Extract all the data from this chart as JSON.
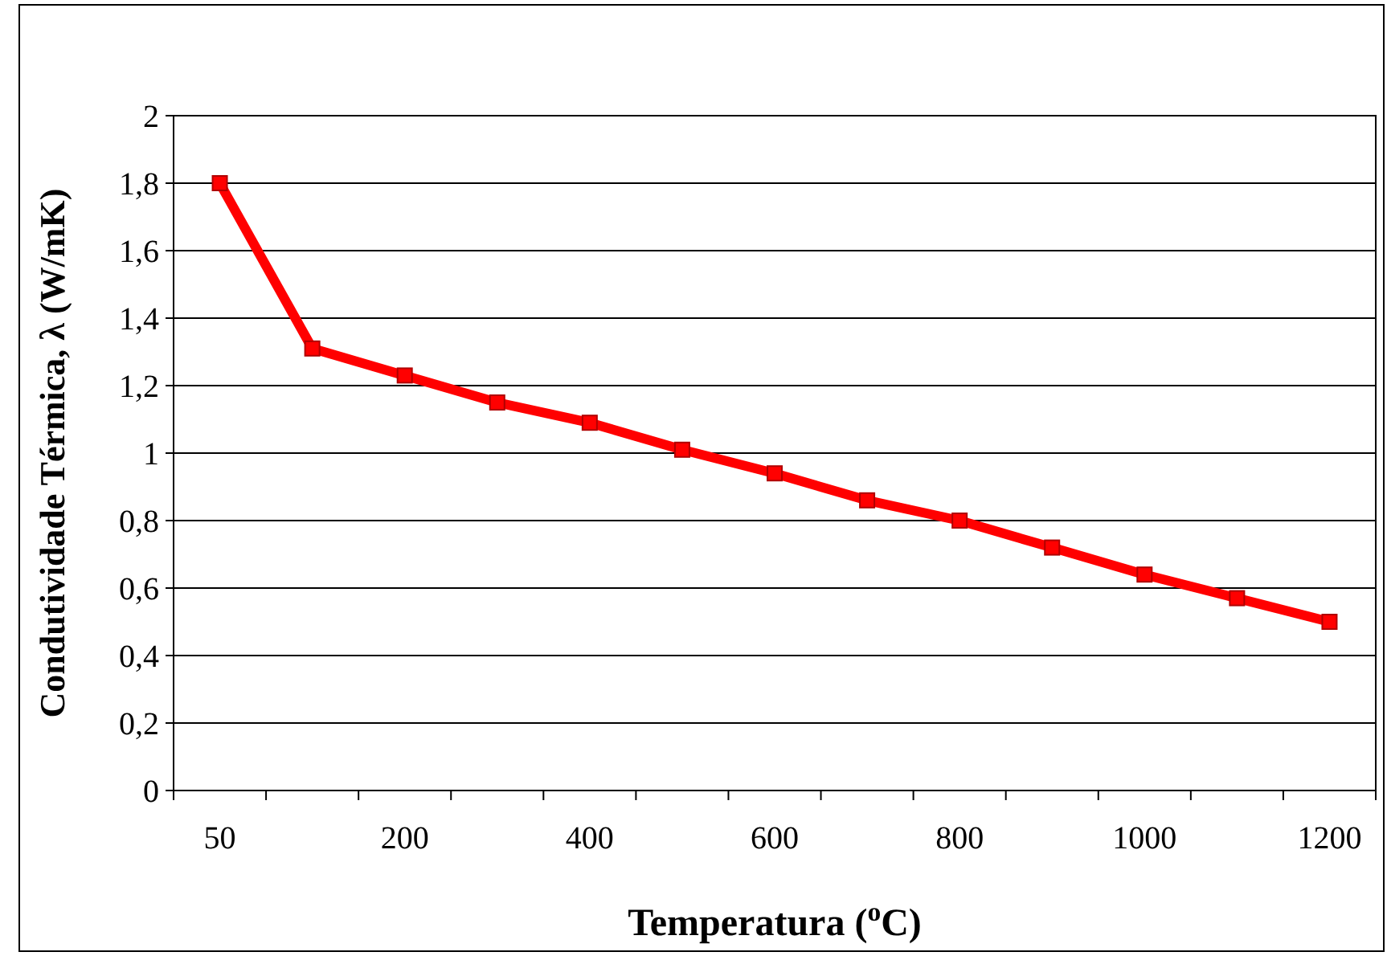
{
  "chart_data": {
    "type": "line",
    "xlabel": "Temperatura ($^{o}$C)",
    "ylabel": "Condutividade Térmica, λ (W/mK)",
    "categories": [
      "50",
      null,
      "200",
      null,
      "400",
      null,
      "600",
      null,
      "800",
      null,
      "1000",
      null,
      "1200"
    ],
    "series": [
      {
        "color": "#ff0000",
        "values": [
          1.8,
          1.31,
          1.23,
          1.15,
          1.09,
          1.01,
          0.94,
          0.86,
          0.8,
          0.72,
          0.64,
          0.57,
          0.5
        ]
      }
    ],
    "ylim": [
      0,
      2
    ],
    "yticks": [
      0,
      {
        "value": 0.2,
        "label": "0,2"
      },
      {
        "value": 0.4,
        "label": "0,4"
      },
      {
        "value": 0.6,
        "label": "0,6"
      },
      {
        "value": 0.8,
        "label": "0,8"
      },
      1,
      {
        "value": 1.2,
        "label": "1,2"
      },
      {
        "value": 1.4,
        "label": "1,4"
      },
      {
        "value": 1.6,
        "label": "1,6"
      },
      {
        "value": 1.8,
        "label": "1,8"
      },
      2
    ],
    "grid": "y",
    "marker": "square",
    "line_style": "solid"
  }
}
